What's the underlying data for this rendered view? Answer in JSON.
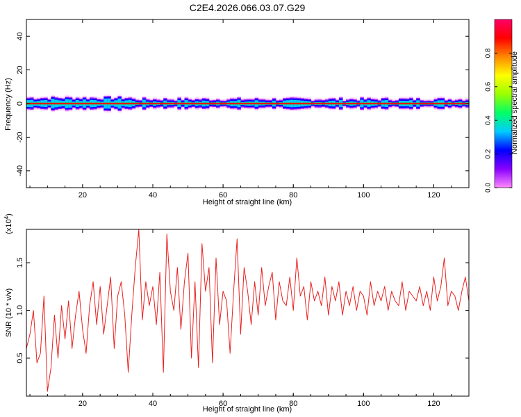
{
  "title": "C2E4.2026.066.03.07.G29",
  "chart_data": [
    {
      "type": "heatmap",
      "xlabel": "Height of straight line (km)",
      "ylabel": "Frequency (Hz)",
      "xlim": [
        4,
        130
      ],
      "ylim": [
        -50,
        50
      ],
      "xticks": [
        20,
        40,
        60,
        80,
        100,
        120
      ],
      "yticks": [
        -40,
        -20,
        0,
        20,
        40
      ],
      "ytick_labels": [
        "-40",
        "-20",
        "0",
        "20",
        "40"
      ],
      "colorbar": {
        "label": "Normalized spectral amplitude",
        "range": [
          0,
          1
        ],
        "ticks": [
          0.0,
          0.2,
          0.4,
          0.6,
          0.8
        ],
        "tick_labels": [
          "0.0",
          "0.2",
          "0.4",
          "0.6",
          "0.8"
        ],
        "colors": [
          "#ff88ff",
          "#8800ff",
          "#0000ff",
          "#00ccff",
          "#00ff66",
          "#99ff00",
          "#ffff00",
          "#ff8800",
          "#ff0000",
          "#ff0066"
        ]
      },
      "peak_frequency_hz": 0
    },
    {
      "type": "line",
      "xlabel": "Height of straight line (km)",
      "ylabel": "SNR (10 * v/v)",
      "y_multiplier_label": "(x10",
      "y_multiplier_exp": "4",
      "y_multiplier_close": ")",
      "xlim": [
        4,
        130
      ],
      "ylim": [
        0.1,
        1.85
      ],
      "xticks": [
        20,
        40,
        60,
        80,
        100,
        120
      ],
      "yticks": [
        0.5,
        1.0,
        1.5
      ],
      "ytick_labels": [
        "0.5",
        "1.0",
        "1.5"
      ],
      "color": "#e8211f",
      "series": [
        {
          "x": [
            4,
            5,
            6,
            7,
            8,
            9,
            10,
            11,
            12,
            13,
            14,
            15,
            16,
            17,
            18,
            19,
            20,
            21,
            22,
            23,
            24,
            25,
            26,
            27,
            28,
            29,
            30,
            31,
            32,
            33,
            34,
            35,
            36,
            37,
            38,
            39,
            40,
            41,
            42,
            43,
            44,
            45,
            46,
            47,
            48,
            49,
            50,
            51,
            52,
            53,
            54,
            55,
            56,
            57,
            58,
            59,
            60,
            61,
            62,
            63,
            64,
            65,
            66,
            67,
            68,
            69,
            70,
            71,
            72,
            73,
            74,
            75,
            76,
            77,
            78,
            79,
            80,
            81,
            82,
            83,
            84,
            85,
            86,
            87,
            88,
            89,
            90,
            91,
            92,
            93,
            94,
            95,
            96,
            97,
            98,
            99,
            100,
            101,
            102,
            103,
            104,
            105,
            106,
            107,
            108,
            109,
            110,
            111,
            112,
            113,
            114,
            115,
            116,
            117,
            118,
            119,
            120,
            121,
            122,
            123,
            124,
            125,
            126,
            127,
            128,
            129,
            130
          ],
          "y": [
            0.6,
            0.75,
            1.0,
            0.45,
            0.55,
            1.15,
            0.15,
            0.4,
            0.95,
            0.5,
            1.05,
            0.7,
            1.1,
            0.6,
            0.95,
            1.2,
            0.8,
            0.55,
            1.05,
            1.3,
            0.85,
            1.25,
            0.75,
            1.05,
            1.35,
            0.6,
            1.15,
            1.3,
            0.95,
            0.35,
            0.95,
            1.45,
            1.85,
            0.9,
            1.3,
            1.05,
            1.25,
            0.85,
            1.4,
            0.35,
            1.8,
            1.2,
            1.0,
            1.45,
            0.8,
            1.3,
            1.6,
            0.5,
            1.3,
            0.4,
            1.7,
            1.2,
            1.45,
            0.45,
            1.55,
            0.85,
            1.2,
            1.1,
            0.55,
            1.2,
            1.75,
            0.75,
            1.45,
            1.2,
            0.85,
            1.3,
            0.95,
            1.45,
            1.05,
            1.25,
            1.4,
            0.9,
            1.3,
            1.1,
            1.05,
            1.35,
            1.0,
            1.55,
            1.15,
            1.25,
            0.9,
            1.3,
            1.1,
            1.2,
            1.05,
            1.35,
            0.95,
            1.25,
            1.1,
            1.3,
            0.95,
            1.2,
            1.05,
            1.25,
            1.0,
            1.2,
            1.15,
            0.95,
            1.3,
            1.05,
            1.2,
            1.1,
            1.25,
            1.0,
            1.2,
            1.1,
            1.05,
            1.3,
            1.0,
            1.2,
            1.15,
            1.1,
            1.25,
            1.05,
            1.2,
            1.0,
            1.35,
            1.1,
            1.25,
            1.55,
            1.05,
            1.2,
            1.15,
            1.0,
            1.2,
            1.35,
            1.1
          ]
        }
      ]
    }
  ]
}
